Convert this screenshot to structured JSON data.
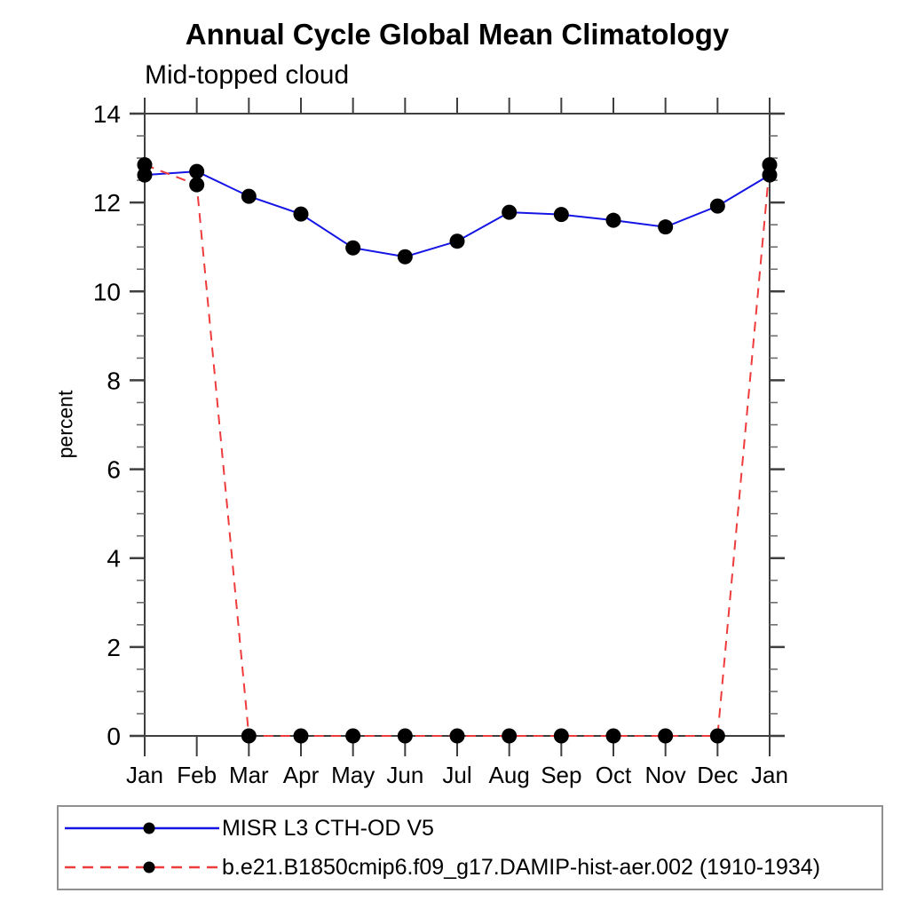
{
  "colors": {
    "background": "#ffffff",
    "text": "#000000",
    "axis": "#3f3f3f",
    "minor_tick": "#6e6e6e",
    "legend_border": "#909090",
    "series_misr": "#1414e6",
    "series_model": "#ef3b3b",
    "marker": "#000000"
  },
  "chart_data": {
    "type": "line",
    "title": "Annual Cycle Global Mean Climatology",
    "subtitle": "Mid-topped cloud",
    "xlabel": "",
    "ylabel": "percent",
    "categories": [
      "Jan",
      "Feb",
      "Mar",
      "Apr",
      "May",
      "Jun",
      "Jul",
      "Aug",
      "Sep",
      "Oct",
      "Nov",
      "Dec",
      "Jan"
    ],
    "ylim": [
      0,
      14
    ],
    "ytick_major": 2,
    "ytick_minor": 0.5,
    "grid": false,
    "legend_position": "bottom",
    "series": [
      {
        "name": "MISR L3 CTH-OD V5",
        "color": "#1414e6",
        "style": "solid",
        "marker": "circle",
        "marker_color": "#000000",
        "values": [
          12.62,
          12.7,
          12.14,
          11.74,
          10.98,
          10.78,
          11.13,
          11.78,
          11.73,
          11.6,
          11.45,
          11.92,
          12.62
        ]
      },
      {
        "name": "b.e21.B1850cmip6.f09_g17.DAMIP-hist-aer.002 (1910-1934)",
        "color": "#ef3b3b",
        "style": "dashed",
        "marker": "circle",
        "marker_color": "#000000",
        "values": [
          12.85,
          12.4,
          0,
          0,
          0,
          0,
          0,
          0,
          0,
          0,
          0,
          0,
          12.85
        ]
      }
    ]
  }
}
